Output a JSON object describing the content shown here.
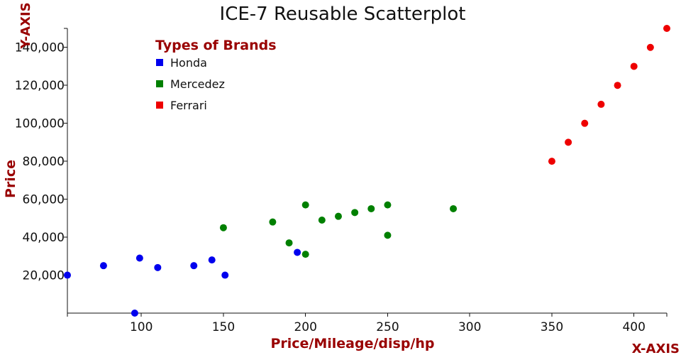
{
  "colors": {
    "title": "#111111",
    "axis": "#111111",
    "accent": "#990000",
    "honda": "#0000ee",
    "mercedez": "#008000",
    "ferrari": "#ee0000"
  },
  "chart_data": {
    "type": "scatter",
    "title": "ICE-7 Reusable Scatterplot",
    "xlabel": "Price/Mileage/disp/hp",
    "ylabel": "Price",
    "x_axis_corner_label": "X-AXIS",
    "y_axis_corner_label": "Y-AXIS",
    "xlim": [
      55,
      420
    ],
    "ylim": [
      0,
      150000
    ],
    "x_ticks": [
      100,
      150,
      200,
      250,
      300,
      350,
      400
    ],
    "y_ticks": [
      20000,
      40000,
      60000,
      80000,
      100000,
      120000,
      140000
    ],
    "y_tick_labels": [
      "20,000",
      "40,000",
      "60,000",
      "80,000",
      "100,000",
      "120,000",
      "140,000"
    ],
    "grid": false,
    "legend": {
      "title": "Types of Brands",
      "placement": "top-left"
    },
    "series": [
      {
        "name": "Honda",
        "color": "#0000ee",
        "points": [
          [
            55,
            20000
          ],
          [
            77,
            25000
          ],
          [
            96,
            0
          ],
          [
            99,
            29000
          ],
          [
            110,
            24000
          ],
          [
            132,
            25000
          ],
          [
            143,
            28000
          ],
          [
            151,
            20000
          ],
          [
            195,
            32000
          ]
        ]
      },
      {
        "name": "Mercedez",
        "color": "#008000",
        "points": [
          [
            150,
            45000
          ],
          [
            180,
            48000
          ],
          [
            190,
            37000
          ],
          [
            200,
            57000
          ],
          [
            200,
            31000
          ],
          [
            210,
            49000
          ],
          [
            220,
            51000
          ],
          [
            230,
            53000
          ],
          [
            240,
            55000
          ],
          [
            250,
            57000
          ],
          [
            250,
            41000
          ],
          [
            290,
            55000
          ]
        ]
      },
      {
        "name": "Ferrari",
        "color": "#ee0000",
        "points": [
          [
            350,
            80000
          ],
          [
            360,
            90000
          ],
          [
            370,
            100000
          ],
          [
            380,
            110000
          ],
          [
            390,
            120000
          ],
          [
            400,
            130000
          ],
          [
            410,
            140000
          ],
          [
            420,
            150000
          ]
        ]
      }
    ]
  }
}
